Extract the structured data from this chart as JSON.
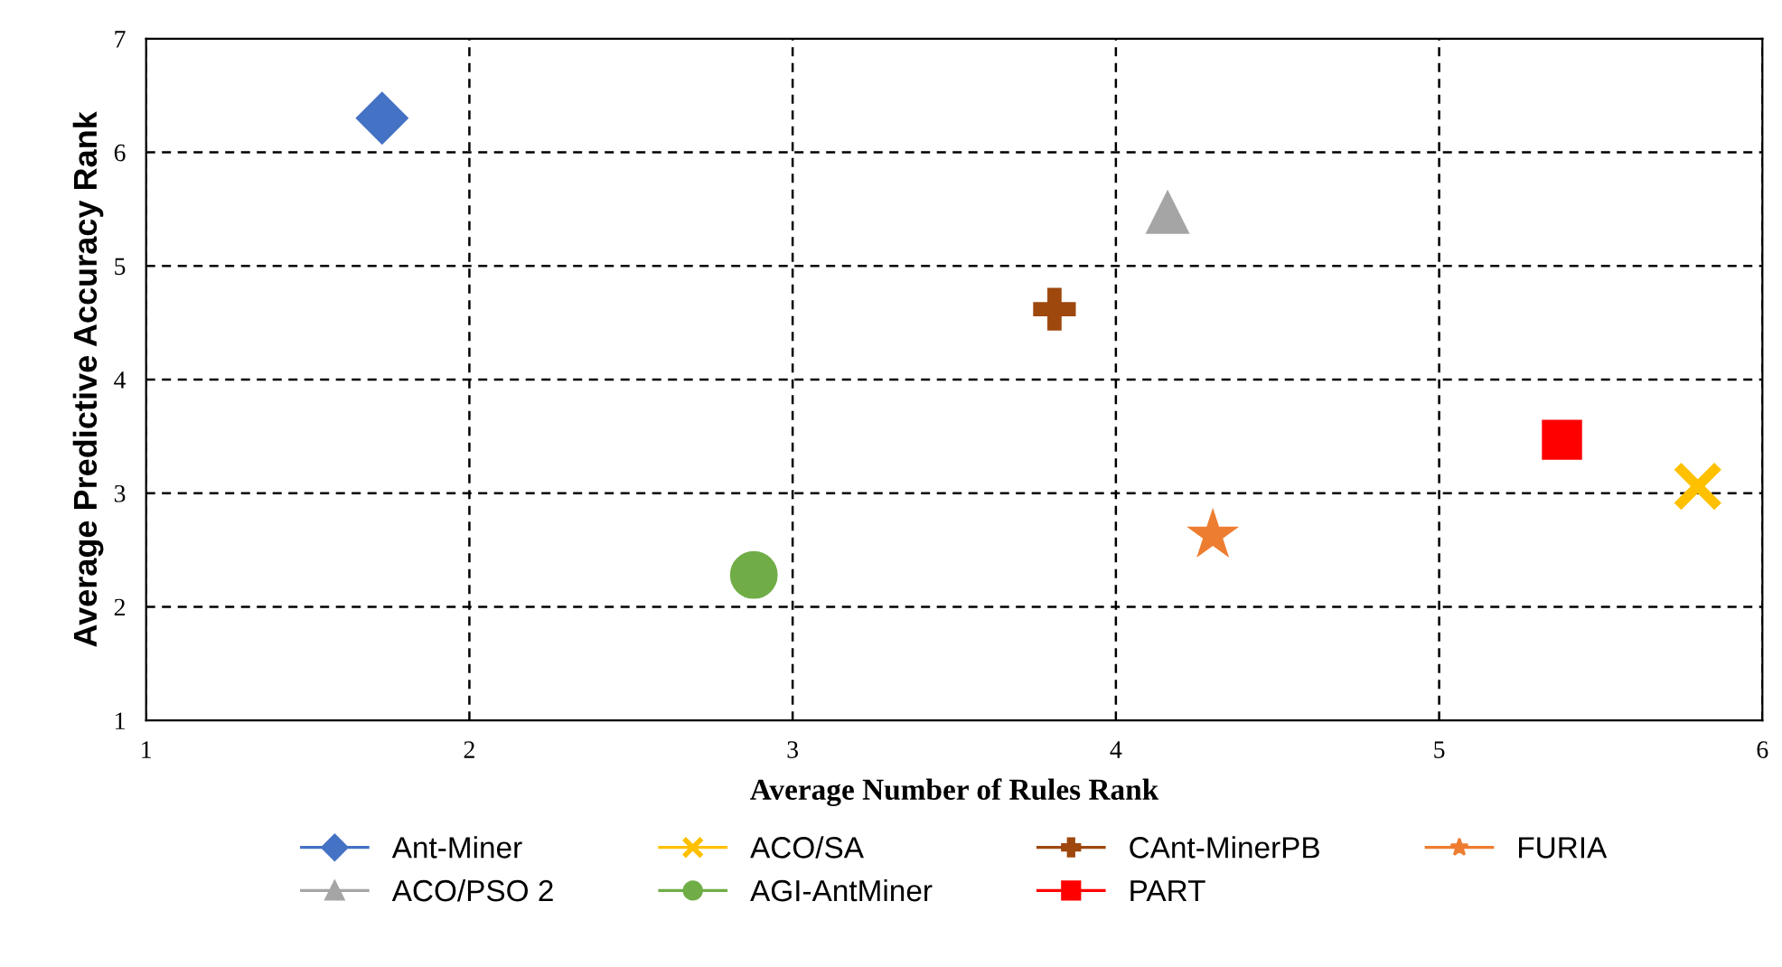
{
  "chart_data": {
    "type": "scatter",
    "xlabel": "Average Number of Rules Rank",
    "ylabel": "Average Predictive Accuracy Rank",
    "xlim": [
      1,
      6
    ],
    "xticks": [
      1,
      2,
      3,
      4,
      5,
      6
    ],
    "ylim": [
      1,
      7
    ],
    "yticks": [
      1,
      2,
      3,
      4,
      5,
      6,
      7
    ],
    "grid": true,
    "legend": "bottom",
    "series": [
      {
        "name": "Ant-Miner",
        "color": "#4472c4",
        "marker": "diamond",
        "x": [
          1.73
        ],
        "values": [
          6.3
        ]
      },
      {
        "name": "ACO/PSO 2",
        "color": "#a5a5a5",
        "marker": "triangle",
        "x": [
          4.16
        ],
        "values": [
          5.47
        ]
      },
      {
        "name": "ACO/SA",
        "color": "#ffc000",
        "marker": "cross",
        "x": [
          5.8
        ],
        "values": [
          3.06
        ]
      },
      {
        "name": "AGI-AntMiner",
        "color": "#70ad47",
        "marker": "circle",
        "x": [
          2.88
        ],
        "values": [
          2.28
        ]
      },
      {
        "name": "CAnt-MinerPB",
        "color": "#9e480e",
        "marker": "plus",
        "x": [
          3.81
        ],
        "values": [
          4.62
        ]
      },
      {
        "name": "PART",
        "color": "#ff0000",
        "marker": "square",
        "x": [
          5.38
        ],
        "values": [
          3.47
        ]
      },
      {
        "name": "FURIA",
        "color": "#ed7d31",
        "marker": "star",
        "x": [
          4.3
        ],
        "values": [
          2.63
        ]
      }
    ]
  }
}
